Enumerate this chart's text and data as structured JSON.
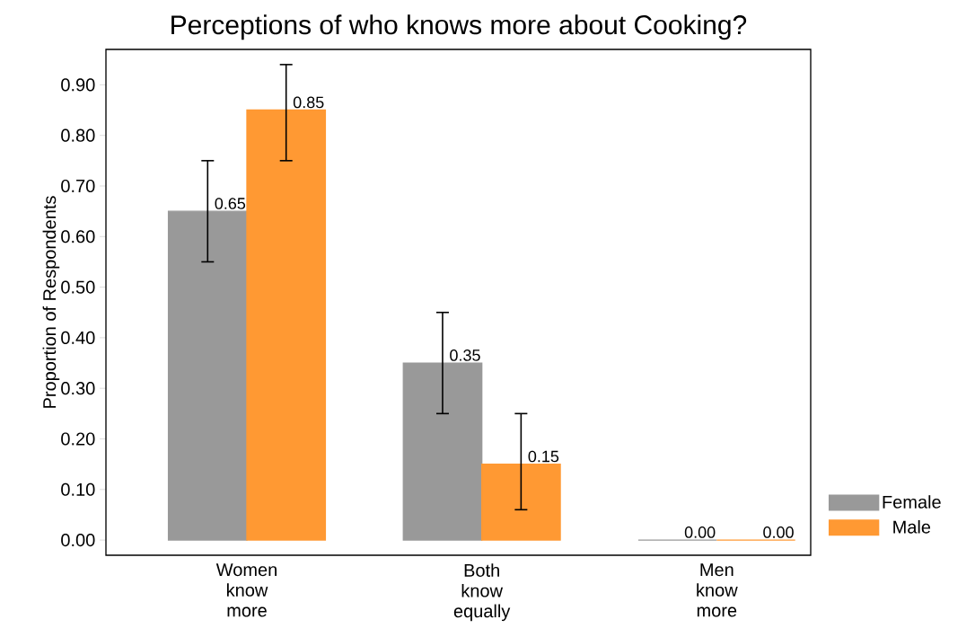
{
  "chart_data": {
    "type": "bar",
    "title": "Perceptions of who knows more about Cooking?",
    "ylabel": "Proportion of Respondents",
    "categories": [
      "Women know more",
      "Both know equally",
      "Men know more"
    ],
    "series": [
      {
        "name": "Female",
        "color": "#999999",
        "values": [
          0.65,
          0.35,
          0.0
        ],
        "errors": [
          [
            0.55,
            0.75
          ],
          [
            0.25,
            0.45
          ],
          null
        ],
        "value_labels": [
          "0.65",
          "0.35",
          "0.00"
        ]
      },
      {
        "name": "Male",
        "color": "#ff9933",
        "values": [
          0.85,
          0.15,
          0.0
        ],
        "errors": [
          [
            0.75,
            0.94
          ],
          [
            0.06,
            0.25
          ],
          null
        ],
        "value_labels": [
          "0.85",
          "0.15",
          "0.00"
        ]
      }
    ],
    "ylim": [
      -0.03,
      0.97
    ],
    "yticks": [
      {
        "value": 0,
        "label": "0.00"
      },
      {
        "value": 0.1,
        "label": "0.10"
      },
      {
        "value": 0.2,
        "label": "0.20"
      },
      {
        "value": 0.3,
        "label": "0.30"
      },
      {
        "value": 0.4,
        "label": "0.40"
      },
      {
        "value": 0.5,
        "label": "0.50"
      },
      {
        "value": 0.6,
        "label": "0.60"
      },
      {
        "value": 0.7,
        "label": "0.70"
      },
      {
        "value": 0.8,
        "label": "0.80"
      },
      {
        "value": 0.9,
        "label": "0.90"
      }
    ],
    "grid": false,
    "legend": "right"
  }
}
